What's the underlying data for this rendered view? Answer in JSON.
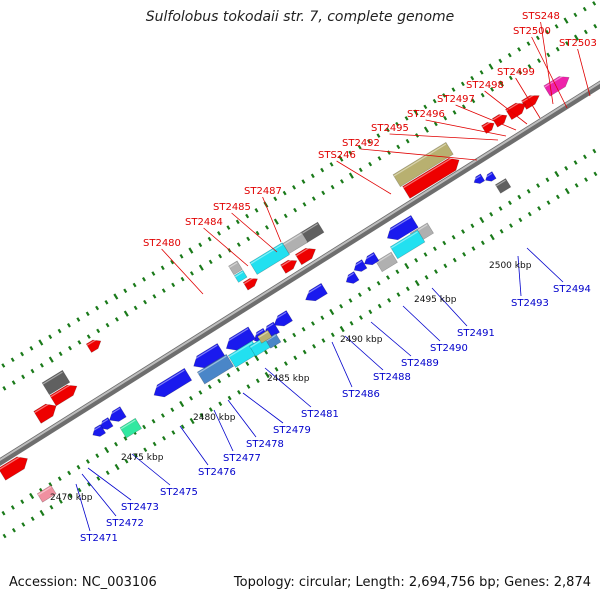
{
  "title": "Sulfolobus tokodaii str. 7, complete genome",
  "footer": {
    "accession": "Accession: NC_003106",
    "summary": "Topology: circular; Length: 2,694,756 bp; Genes: 2,874"
  },
  "colors": {
    "forward_label": "#e00000",
    "reverse_label": "#0000cc",
    "backbone": "#8a8a8a",
    "tick_dot": "#1a7a1a",
    "red": "#ee0000",
    "blue": "#1a1aee",
    "cyan": "#22e0f0",
    "olive": "#b8b070",
    "gray": "#b0b0b0",
    "darkgray": "#606060",
    "steel": "#4a86c8",
    "magenta": "#ee22aa",
    "seagreen": "#30e8a0",
    "pink": "#f090a0"
  },
  "scale_labels": [
    "2470 kbp",
    "2475 kbp",
    "2480 kbp",
    "2485 kbp",
    "2490 kbp",
    "2495 kbp",
    "2500 kbp"
  ],
  "forward_genes": [
    "STS248",
    "ST2500",
    "ST2503",
    "ST2499",
    "ST2498",
    "ST2497",
    "ST2496",
    "ST2495",
    "ST2492",
    "STS246",
    "ST2487",
    "ST2485",
    "ST2484",
    "ST2480"
  ],
  "reverse_genes": [
    "ST2494",
    "ST2493",
    "ST2491",
    "ST2490",
    "ST2489",
    "ST2488",
    "ST2486",
    "ST2481",
    "ST2479",
    "ST2478",
    "ST2477",
    "ST2476",
    "ST2475",
    "ST2473",
    "ST2472",
    "ST2471"
  ]
}
